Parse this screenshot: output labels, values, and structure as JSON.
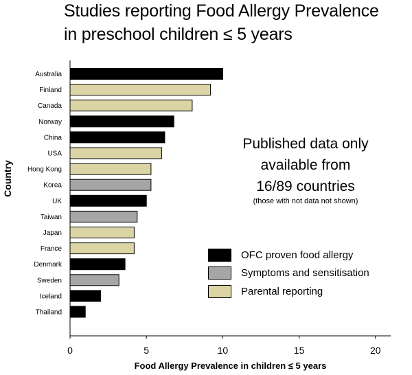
{
  "chart_data": {
    "type": "bar",
    "orientation": "horizontal",
    "title_lines": [
      "Studies reporting Food Allergy Prevalence",
      "in preschool children ≤ 5 years"
    ],
    "xlabel": "Food Allergy Prevalence in children ≤ 5 years",
    "ylabel": "Country",
    "xlim": [
      0,
      21
    ],
    "xticks": [
      0,
      5,
      10,
      15,
      20
    ],
    "grid": false,
    "categories": [
      "Australia",
      "Finland",
      "Canada",
      "Norway",
      "China",
      "USA",
      "Hong Kong",
      "Korea",
      "UK",
      "Taiwan",
      "Japan",
      "France",
      "Denmark",
      "Sweden",
      "Iceland",
      "Thailand"
    ],
    "values": [
      10.0,
      9.2,
      8.0,
      6.8,
      6.2,
      6.0,
      5.3,
      5.3,
      5.0,
      4.4,
      4.2,
      4.2,
      3.6,
      3.2,
      2.0,
      1.0
    ],
    "bar_type": [
      "OFC proven food allergy",
      "Parental reporting",
      "Parental reporting",
      "OFC proven food allergy",
      "OFC proven food allergy",
      "Parental reporting",
      "Parental reporting",
      "Symptoms and sensitisation",
      "OFC proven food allergy",
      "Symptoms and sensitisation",
      "Parental reporting",
      "Parental reporting",
      "OFC proven food allergy",
      "Symptoms and sensitisation",
      "OFC proven food allergy",
      "OFC proven food allergy"
    ],
    "legend": {
      "placement": "bottom-right",
      "entries": [
        {
          "label": "OFC proven food allergy",
          "color": "#000000"
        },
        {
          "label": "Symptoms and sensitisation",
          "color": "#a6a6a6"
        },
        {
          "label": "Parental reporting",
          "color": "#dbd5a6"
        }
      ]
    },
    "annotation": {
      "lines": [
        "Published data only",
        "available from",
        "16/89 countries"
      ],
      "subtext": "(those with not data not shown)"
    }
  },
  "colors": {
    "axis": "#000000",
    "bar_outline": "#000000"
  }
}
